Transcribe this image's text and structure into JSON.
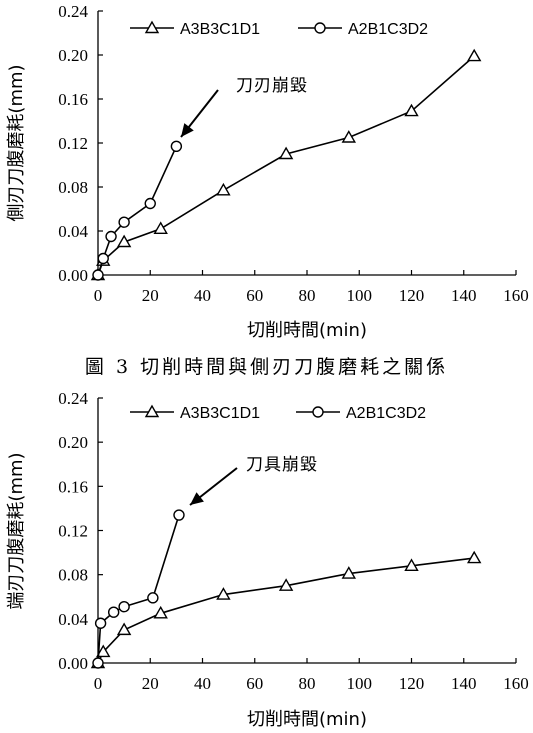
{
  "caption": "圖 3  切削時間與側刃刀腹磨耗之關係",
  "chart_data": [
    {
      "type": "line",
      "xlabel": "切削時間(min)",
      "ylabel": "側刃刀腹磨耗(mm)",
      "xlim": [
        0,
        160
      ],
      "ylim": [
        0,
        0.24
      ],
      "xticks": [
        "0",
        "20",
        "40",
        "60",
        "80",
        "100",
        "120",
        "140",
        "160"
      ],
      "yticks": [
        "0.00",
        "0.04",
        "0.08",
        "0.12",
        "0.16",
        "0.20",
        "0.24"
      ],
      "grid": false,
      "legend": "top",
      "annotation": "刀刃崩毀",
      "series": [
        {
          "name": "A3B3C1D1",
          "marker": "triangle",
          "x": [
            0,
            2,
            10,
            24,
            48,
            72,
            96,
            120,
            144
          ],
          "y": [
            0.0,
            0.013,
            0.03,
            0.042,
            0.077,
            0.11,
            0.125,
            0.149,
            0.199
          ]
        },
        {
          "name": "A2B1C3D2",
          "marker": "circle",
          "x": [
            0,
            2,
            5,
            10,
            20,
            30
          ],
          "y": [
            0.0,
            0.015,
            0.035,
            0.048,
            0.065,
            0.117
          ]
        }
      ]
    },
    {
      "type": "line",
      "xlabel": "切削時間(min)",
      "ylabel": "端刃刀腹磨耗(mm)",
      "xlim": [
        0,
        160
      ],
      "ylim": [
        0,
        0.24
      ],
      "xticks": [
        "0",
        "20",
        "40",
        "60",
        "80",
        "100",
        "120",
        "140",
        "160"
      ],
      "yticks": [
        "0.00",
        "0.04",
        "0.08",
        "0.12",
        "0.16",
        "0.20",
        "0.24"
      ],
      "grid": false,
      "legend": "top",
      "annotation": "刀具崩毀",
      "series": [
        {
          "name": "A3B3C1D1",
          "marker": "triangle",
          "x": [
            0,
            2,
            10,
            24,
            48,
            72,
            96,
            120,
            144
          ],
          "y": [
            0.0,
            0.01,
            0.03,
            0.045,
            0.062,
            0.07,
            0.081,
            0.088,
            0.095
          ]
        },
        {
          "name": "A2B1C3D2",
          "marker": "circle",
          "x": [
            0,
            1,
            6,
            10,
            21,
            31
          ],
          "y": [
            0.0,
            0.036,
            0.046,
            0.051,
            0.059,
            0.134
          ]
        }
      ]
    }
  ]
}
